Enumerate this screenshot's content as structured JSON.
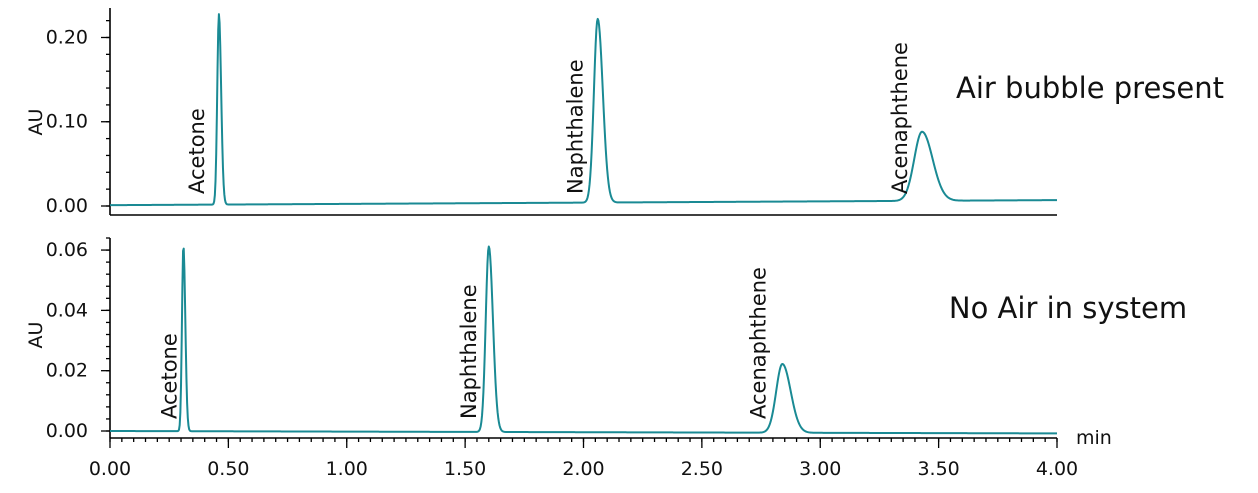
{
  "chart_data": [
    {
      "type": "line",
      "panel": "top",
      "title": "",
      "annotation": "Air bubble present",
      "xlabel": "",
      "ylabel": "AU",
      "xlim": [
        0,
        4
      ],
      "ylim": [
        -0.006,
        0.235
      ],
      "yticks": [
        {
          "value": 0.0,
          "label": "0.00"
        },
        {
          "value": 0.1,
          "label": "0.10"
        },
        {
          "value": 0.2,
          "label": "0.20"
        }
      ],
      "baseline": 0.001,
      "baseline_end": 0.007,
      "peaks": [
        {
          "name": "Acetone",
          "x": 0.46,
          "height": 0.226,
          "width": 0.007
        },
        {
          "name": "Naphthalene",
          "x": 2.06,
          "height": 0.218,
          "width": 0.016
        },
        {
          "name": "Acenaphthene",
          "x": 3.43,
          "height": 0.082,
          "width": 0.033
        }
      ],
      "color": "#1a8a94"
    },
    {
      "type": "line",
      "panel": "bottom",
      "title": "",
      "annotation": "No Air in system",
      "xlabel": "min",
      "ylabel": "AU",
      "xlim": [
        0,
        4
      ],
      "ylim": [
        -0.0015,
        0.064
      ],
      "xticks": [
        {
          "value": 0.0,
          "label": "0.00"
        },
        {
          "value": 0.5,
          "label": "0.50"
        },
        {
          "value": 1.0,
          "label": "1.00"
        },
        {
          "value": 1.5,
          "label": "1.50"
        },
        {
          "value": 2.0,
          "label": "2.00"
        },
        {
          "value": 2.5,
          "label": "2.50"
        },
        {
          "value": 3.0,
          "label": "3.00"
        },
        {
          "value": 3.5,
          "label": "3.50"
        },
        {
          "value": 4.0,
          "label": "4.00"
        }
      ],
      "yticks": [
        {
          "value": 0.0,
          "label": "0.00"
        },
        {
          "value": 0.02,
          "label": "0.02"
        },
        {
          "value": 0.04,
          "label": "0.04"
        },
        {
          "value": 0.06,
          "label": "0.06"
        }
      ],
      "baseline": 0.0,
      "baseline_end": -0.0008,
      "peaks": [
        {
          "name": "Acetone",
          "x": 0.31,
          "height": 0.0615,
          "width": 0.006
        },
        {
          "name": "Naphthalene",
          "x": 1.6,
          "height": 0.0615,
          "width": 0.013
        },
        {
          "name": "Acenaphthene",
          "x": 2.84,
          "height": 0.0228,
          "width": 0.026
        }
      ],
      "color": "#1a8a94"
    }
  ]
}
